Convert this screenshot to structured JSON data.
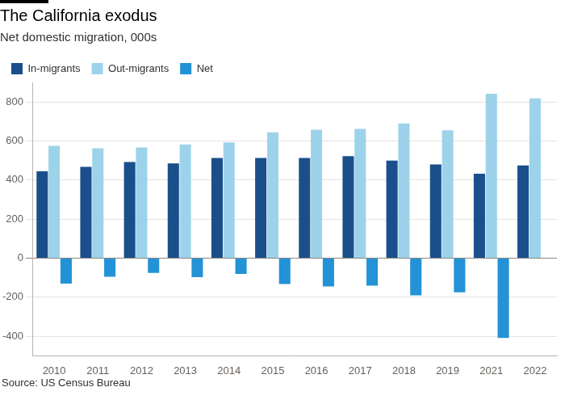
{
  "chart_data": {
    "type": "bar",
    "title": "The California exodus",
    "subtitle": "Net domestic migration, 000s",
    "source": "Source: US Census Bureau",
    "categories": [
      "2010",
      "2011",
      "2012",
      "2013",
      "2014",
      "2015",
      "2016",
      "2017",
      "2018",
      "2019",
      "2021",
      "2022"
    ],
    "series": [
      {
        "name": "In-migrants",
        "color": "#1a4f8b",
        "values": [
          445,
          468,
          492,
          485,
          513,
          513,
          513,
          522,
          500,
          480,
          433,
          475
        ]
      },
      {
        "name": "Out-migrants",
        "color": "#9dd3ea",
        "values": [
          575,
          563,
          567,
          582,
          593,
          645,
          658,
          662,
          690,
          655,
          842,
          818
        ]
      },
      {
        "name": "Net",
        "color": "#2392d6",
        "values": [
          -130,
          -95,
          -75,
          -97,
          -80,
          -132,
          -145,
          -140,
          -190,
          -175,
          -408,
          null
        ]
      }
    ],
    "ylim": [
      -500,
      900
    ],
    "yticks": [
      -400,
      -200,
      0,
      200,
      400,
      600,
      800
    ],
    "grid": true,
    "legend": "top-left"
  }
}
